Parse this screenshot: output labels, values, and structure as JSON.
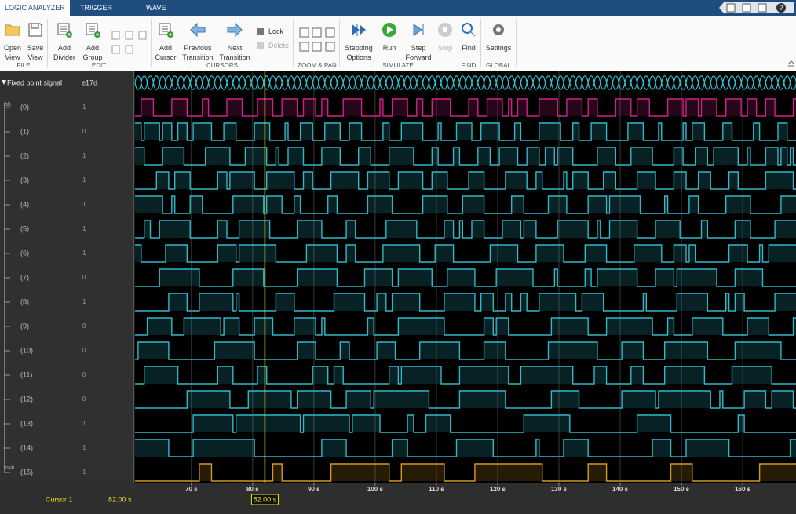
{
  "tabs": [
    "LOGIC ANALYZER",
    "TRIGGER",
    "WAVE"
  ],
  "toolstrip": {
    "groups": [
      {
        "label": "FILE",
        "buttons": [
          "Open\nView",
          "Save\nView"
        ]
      },
      {
        "label": "EDIT",
        "buttons": [
          "Add\nDivider",
          "Add\nGroup"
        ]
      },
      {
        "label": "CURSORS",
        "buttons": [
          "Add\nCursor",
          "Previous\nTransition",
          "Next\nTransition"
        ],
        "small_buttons": [
          "Lock",
          "Delete"
        ]
      },
      {
        "label": "ZOOM & PAN"
      },
      {
        "label": "SIMULATE",
        "buttons": [
          "Stepping\nOptions",
          "Run",
          "Step\nForward",
          "Stop"
        ]
      },
      {
        "label": "FIND",
        "buttons": [
          "Find"
        ]
      },
      {
        "label": "GLOBAL",
        "buttons": [
          "Settings"
        ]
      }
    ]
  },
  "signals": {
    "group": {
      "name": "Fixed point signal",
      "value": "e17d"
    },
    "lsb": "lsb",
    "msb": "msb",
    "bits": [
      {
        "name": "(0)",
        "value": "1"
      },
      {
        "name": "(1)",
        "value": "0"
      },
      {
        "name": "(2)",
        "value": "1"
      },
      {
        "name": "(3)",
        "value": "1"
      },
      {
        "name": "(4)",
        "value": "1"
      },
      {
        "name": "(5)",
        "value": "1"
      },
      {
        "name": "(6)",
        "value": "1"
      },
      {
        "name": "(7)",
        "value": "0"
      },
      {
        "name": "(8)",
        "value": "1"
      },
      {
        "name": "(9)",
        "value": "0"
      },
      {
        "name": "(10)",
        "value": "0"
      },
      {
        "name": "(11)",
        "value": "0"
      },
      {
        "name": "(12)",
        "value": "0"
      },
      {
        "name": "(13)",
        "value": "1"
      },
      {
        "name": "(14)",
        "value": "1"
      },
      {
        "name": "(15)",
        "value": "1"
      }
    ]
  },
  "time_axis": {
    "xlim": [
      60.8,
      168.7
    ],
    "xticks": [
      {
        "value": 70,
        "label": "70 s"
      },
      {
        "value": 80,
        "label": "80 s"
      },
      {
        "value": 90,
        "label": "90 s"
      },
      {
        "value": 100,
        "label": "100 s"
      },
      {
        "value": 110,
        "label": "110 s"
      },
      {
        "value": 120,
        "label": "120 s"
      },
      {
        "value": 130,
        "label": "130 s"
      },
      {
        "value": 140,
        "label": "140 s"
      },
      {
        "value": 150,
        "label": "150 s"
      },
      {
        "value": 160,
        "label": "160 s"
      }
    ]
  },
  "cursor": {
    "name": "Cursor 1",
    "time": {
      "value": 82,
      "label": "82.00 s"
    }
  }
}
